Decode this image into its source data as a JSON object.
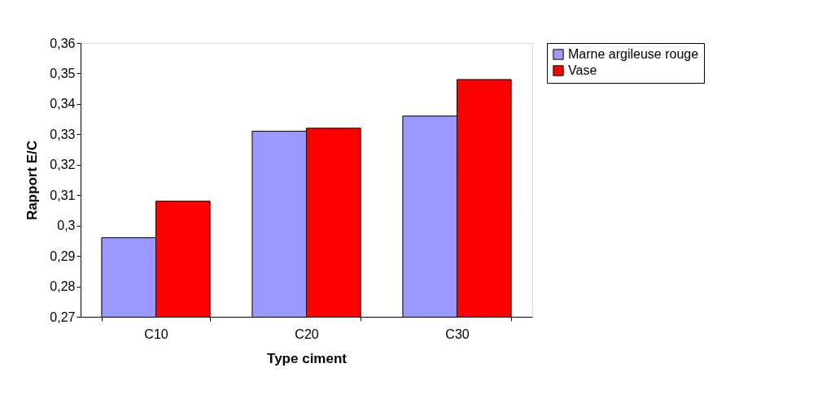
{
  "chart_data": {
    "type": "bar",
    "xlabel": "Type ciment",
    "ylabel": "Rapport E/C",
    "categories": [
      "C10",
      "C20",
      "C30"
    ],
    "series": [
      {
        "name": "Marne argileuse rouge",
        "color": "#9999ff",
        "values": [
          0.296,
          0.331,
          0.336
        ]
      },
      {
        "name": "Vase",
        "color": "#ff0000",
        "values": [
          0.308,
          0.332,
          0.348
        ]
      }
    ],
    "ylim": [
      0.27,
      0.36
    ],
    "yticks": [
      {
        "value": 0.27,
        "label": "0,27"
      },
      {
        "value": 0.28,
        "label": "0,28"
      },
      {
        "value": 0.29,
        "label": "0,29"
      },
      {
        "value": 0.3,
        "label": "0,3"
      },
      {
        "value": 0.31,
        "label": "0,31"
      },
      {
        "value": 0.32,
        "label": "0,32"
      },
      {
        "value": 0.33,
        "label": "0,33"
      },
      {
        "value": 0.34,
        "label": "0,34"
      },
      {
        "value": 0.35,
        "label": "0,35"
      },
      {
        "value": 0.36,
        "label": "0,36"
      }
    ],
    "grid": false,
    "legend": "right"
  }
}
